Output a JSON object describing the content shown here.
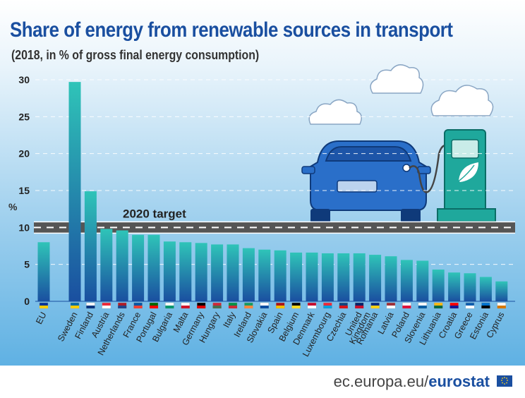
{
  "header": {
    "title": "Share of energy from renewable sources in transport",
    "subtitle": "(2018, in % of gross final energy consumption)"
  },
  "colors": {
    "title": "#1a4fa0",
    "bar_top": "#2fc4b8",
    "bar_bottom": "#1a4fa0",
    "eu_bar_top": "#2fc4b8",
    "road": "#555555",
    "car_body": "#2a6fc9",
    "charger": "#1fa89c"
  },
  "chart_data": {
    "type": "bar",
    "title": "Share of energy from renewable sources in transport",
    "subtitle": "(2018, in % of gross final energy consumption)",
    "ylabel": "%",
    "ylim": [
      0,
      30
    ],
    "yticks": [
      0,
      5,
      10,
      15,
      20,
      25,
      30
    ],
    "categories": [
      "EU",
      "Sweden",
      "Finland",
      "Austria",
      "Netherlands",
      "France",
      "Portugal",
      "Bulgaria",
      "Malta",
      "Germany",
      "Hungary",
      "Italy",
      "Ireland",
      "Slovakia",
      "Spain",
      "Belgium",
      "Denmark",
      "Luxembourg",
      "Czechia",
      "United Kingdom",
      "Romania",
      "Latvia",
      "Poland",
      "Slovenia",
      "Lithuania",
      "Croatia",
      "Greece",
      "Estonia",
      "Cyprus"
    ],
    "values": [
      8.0,
      29.7,
      14.9,
      9.8,
      9.6,
      9.0,
      9.0,
      8.1,
      8.0,
      7.9,
      7.7,
      7.7,
      7.2,
      7.0,
      6.9,
      6.6,
      6.6,
      6.5,
      6.5,
      6.5,
      6.3,
      6.1,
      5.6,
      5.5,
      4.3,
      3.9,
      3.8,
      3.3,
      2.7
    ],
    "target": {
      "label": "2020 target",
      "value": 10
    }
  },
  "footer": {
    "site": "ec.europa.eu/",
    "brand": "eurostat"
  }
}
